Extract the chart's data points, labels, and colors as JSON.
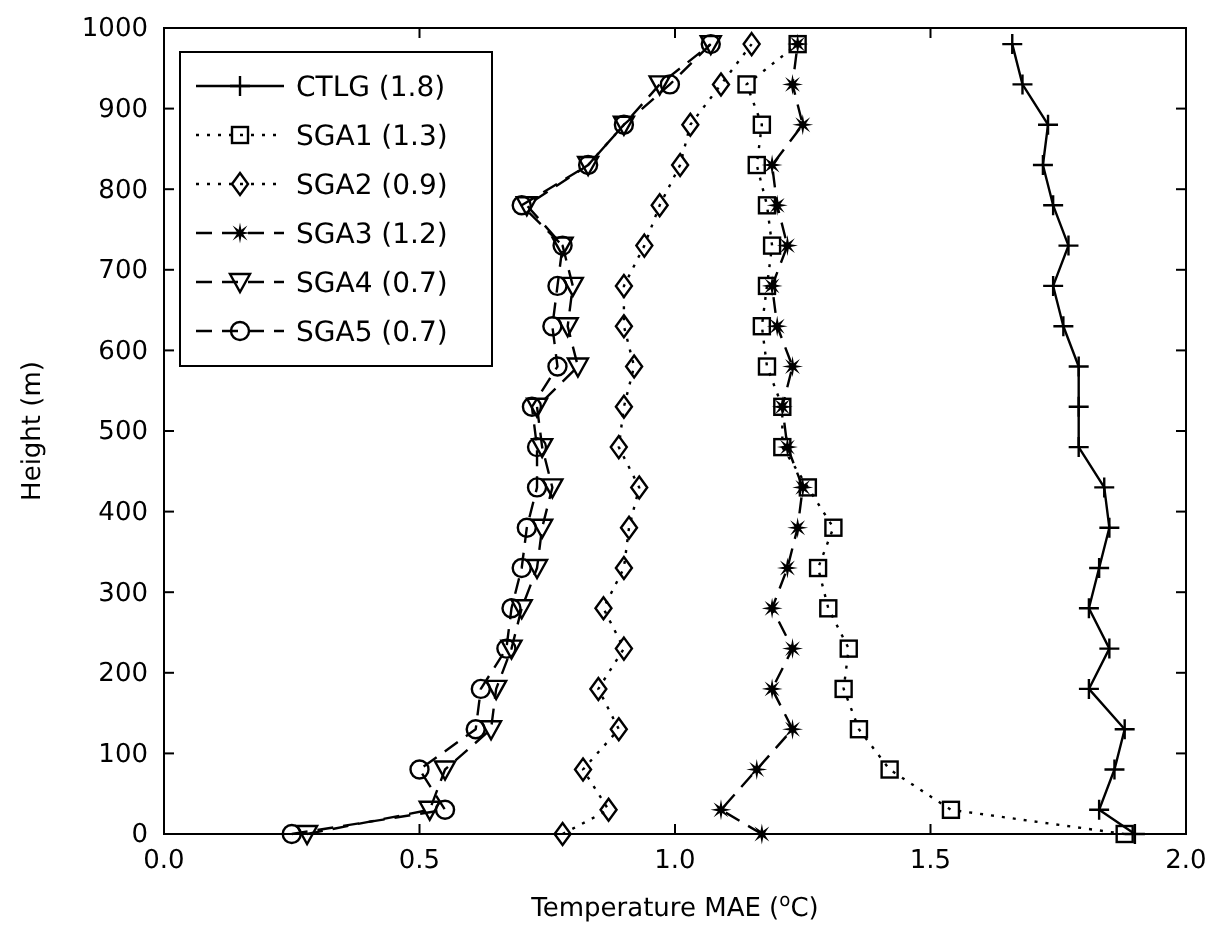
{
  "chart_data": {
    "type": "line",
    "xlabel": "Temperature MAE ($^{o}$C)",
    "ylabel": "Height (m)",
    "xlim": [
      0,
      2
    ],
    "xticks": [
      {
        "value": 0,
        "label": "0.0"
      },
      {
        "value": 0.5,
        "label": "0.5"
      },
      {
        "value": 1,
        "label": "1.0"
      },
      {
        "value": 1.5,
        "label": "1.5"
      },
      {
        "value": 2,
        "label": "2.0"
      }
    ],
    "ylim": [
      0,
      1000
    ],
    "yticks": [
      0,
      100,
      200,
      300,
      400,
      500,
      600,
      700,
      800,
      900,
      1000
    ],
    "orientation": "horizontal",
    "legend": "top left",
    "grid": false,
    "x": [
      0,
      30,
      80,
      130,
      180,
      230,
      280,
      330,
      380,
      430,
      480,
      530,
      580,
      630,
      680,
      730,
      780,
      830,
      880,
      930,
      980
    ],
    "series": [
      {
        "name": "CTLG (1.8)",
        "color": "#000000",
        "marker": "cross",
        "line_style": "solid",
        "values": [
          1.9,
          1.83,
          1.86,
          1.88,
          1.81,
          1.85,
          1.81,
          1.83,
          1.85,
          1.84,
          1.79,
          1.79,
          1.79,
          1.76,
          1.74,
          1.77,
          1.74,
          1.72,
          1.73,
          1.68,
          1.66
        ]
      },
      {
        "name": "SGA1 (1.3)",
        "color": "#000000",
        "marker": "square",
        "line_style": "dotted",
        "values": [
          1.88,
          1.54,
          1.42,
          1.36,
          1.33,
          1.34,
          1.3,
          1.28,
          1.31,
          1.26,
          1.21,
          1.21,
          1.18,
          1.17,
          1.18,
          1.19,
          1.18,
          1.16,
          1.17,
          1.14,
          1.24
        ]
      },
      {
        "name": "SGA2 (0.9)",
        "color": "#000000",
        "marker": "diamond",
        "line_style": "dotted",
        "values": [
          0.78,
          0.87,
          0.82,
          0.89,
          0.85,
          0.9,
          0.86,
          0.9,
          0.91,
          0.93,
          0.89,
          0.9,
          0.92,
          0.9,
          0.9,
          0.94,
          0.97,
          1.01,
          1.03,
          1.09,
          1.15
        ]
      },
      {
        "name": "SGA3 (1.2)",
        "color": "#000000",
        "marker": "star",
        "line_style": "dashed",
        "values": [
          1.17,
          1.09,
          1.16,
          1.23,
          1.19,
          1.23,
          1.19,
          1.22,
          1.24,
          1.25,
          1.22,
          1.21,
          1.23,
          1.2,
          1.19,
          1.22,
          1.2,
          1.19,
          1.25,
          1.23,
          1.24
        ]
      },
      {
        "name": "SGA4 (0.7)",
        "color": "#000000",
        "marker": "triangle",
        "line_style": "dashed",
        "values": [
          0.28,
          0.52,
          0.55,
          0.64,
          0.65,
          0.68,
          0.7,
          0.73,
          0.74,
          0.76,
          0.74,
          0.73,
          0.81,
          0.79,
          0.8,
          0.78,
          0.71,
          0.83,
          0.9,
          0.97,
          1.07
        ]
      },
      {
        "name": "SGA5 (0.7)",
        "color": "#000000",
        "marker": "circle",
        "line_style": "dashed",
        "values": [
          0.25,
          0.55,
          0.5,
          0.61,
          0.62,
          0.67,
          0.68,
          0.7,
          0.71,
          0.73,
          0.73,
          0.72,
          0.77,
          0.76,
          0.77,
          0.78,
          0.7,
          0.83,
          0.9,
          0.99,
          1.07
        ]
      }
    ]
  }
}
